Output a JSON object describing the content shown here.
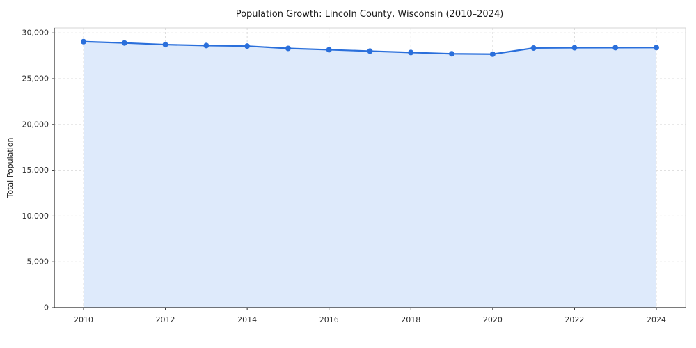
{
  "figure": {
    "title": "Population Growth: Lincoln County, Wisconsin (2010–2024)",
    "ylabel": "Total Population"
  },
  "chart_data": {
    "type": "line",
    "title": "Population Growth: Lincoln County, Wisconsin (2010–2024)",
    "xlabel": "",
    "ylabel": "Total Population",
    "x": [
      2010,
      2011,
      2012,
      2013,
      2014,
      2015,
      2016,
      2017,
      2018,
      2019,
      2020,
      2021,
      2022,
      2023,
      2024
    ],
    "series": [
      {
        "name": "Total Population",
        "values": [
          29050,
          28900,
          28720,
          28620,
          28560,
          28310,
          28160,
          28010,
          27860,
          27720,
          27680,
          28350,
          28380,
          28390,
          28400
        ]
      }
    ],
    "xticks": [
      2010,
      2012,
      2014,
      2016,
      2018,
      2020,
      2022,
      2024
    ],
    "yticks": [
      0,
      5000,
      10000,
      15000,
      20000,
      25000,
      30000
    ],
    "ylim": [
      0,
      30550
    ],
    "grid": true,
    "grid_style": "dashed",
    "legend": false,
    "area_fill": true,
    "marker": "circle",
    "colors": {
      "line": "#2a6fdb",
      "marker": "#2a6fdb",
      "fill": "#deeafb",
      "grid": "#dcdcdc",
      "axis": "#2b2b2b",
      "border": "#d4d4d4",
      "text": "#1a1a1a"
    }
  }
}
